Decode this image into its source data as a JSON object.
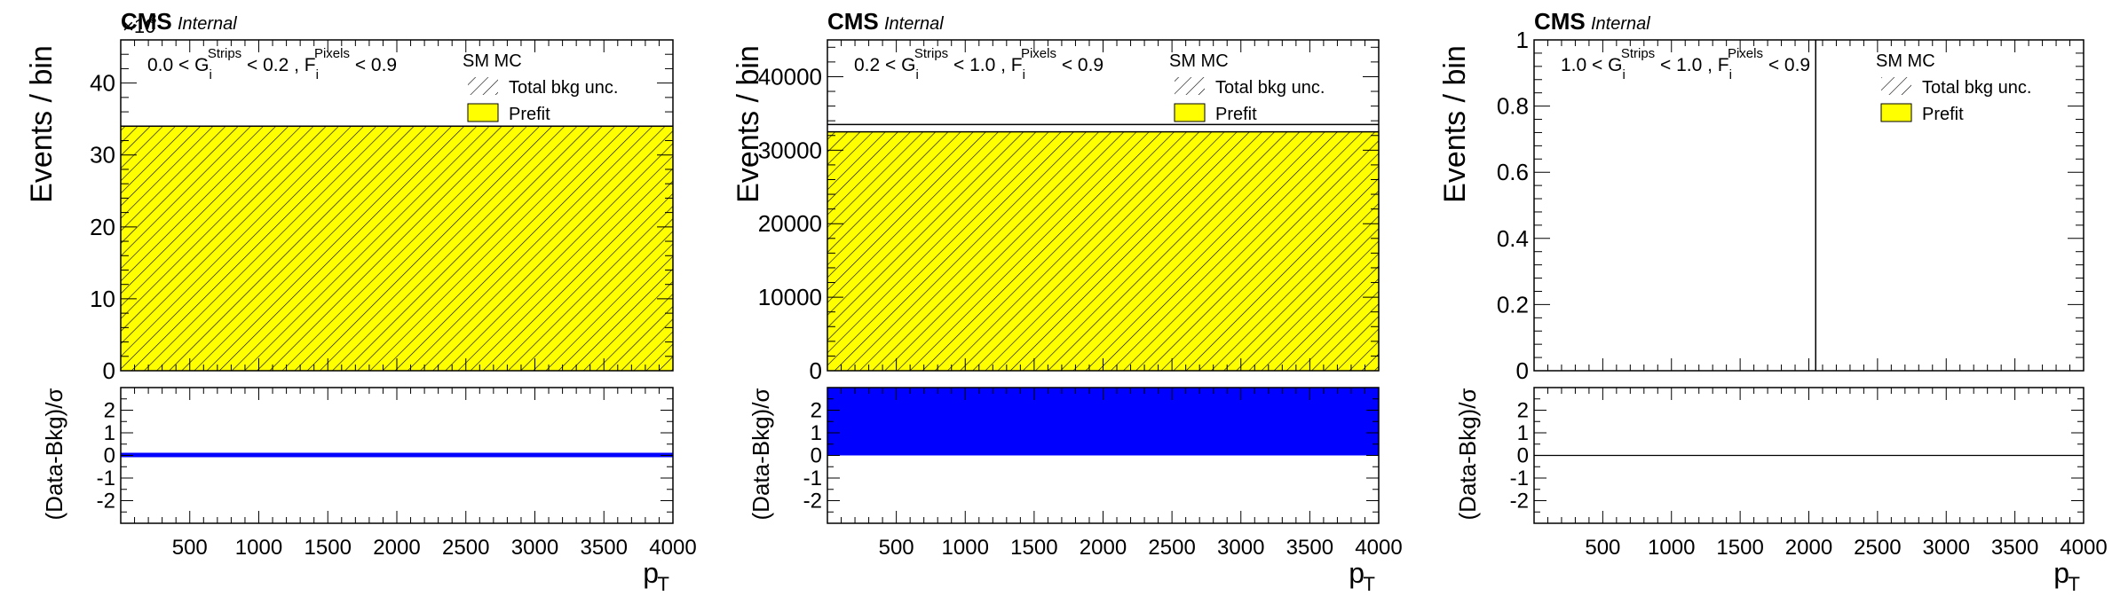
{
  "x_axis_label": "p",
  "x_axis_label_sub": "T",
  "y_axis_label_main": "Events / bin",
  "y_axis_label_ratio": "(Data-Bkg)/σ",
  "cms_label": "CMS",
  "internal_label": "Internal",
  "legend": {
    "mc": "SM MC",
    "unc": "Total bkg unc.",
    "prefit": "Prefit"
  },
  "colors": {
    "prefit_fill": "#ffff00",
    "hatch": "#000000",
    "ratio_fill": "#0000ff",
    "line": "#000000"
  },
  "chart_data": [
    {
      "type": "bar",
      "region": {
        "g_lo": "0.0",
        "g_hi": "0.2",
        "f_cut": "0.9"
      },
      "multiplier": "×10",
      "multiplier_exp": "3",
      "x": [
        0,
        4000
      ],
      "xlim": [
        0,
        4000
      ],
      "xticks": [
        500,
        1000,
        1500,
        2000,
        2500,
        3000,
        3500,
        4000
      ],
      "main": {
        "ylim": [
          0,
          46
        ],
        "yticks": [
          0,
          10,
          20,
          30,
          40
        ],
        "prefit_value": 34,
        "unc_value": 34
      },
      "ratio": {
        "ylim": [
          -3,
          3
        ],
        "yticks": [
          -2,
          -1,
          0,
          1,
          2
        ],
        "fill_value": 0.0,
        "style": "thin-band"
      }
    },
    {
      "type": "bar",
      "region": {
        "g_lo": "0.2",
        "g_hi": "1.0",
        "f_cut": "0.9"
      },
      "x": [
        0,
        4000
      ],
      "xlim": [
        0,
        4000
      ],
      "xticks": [
        500,
        1000,
        1500,
        2000,
        2500,
        3000,
        3500,
        4000
      ],
      "main": {
        "ylim": [
          0,
          45000
        ],
        "yticks": [
          0,
          10000,
          20000,
          30000,
          40000
        ],
        "prefit_value": 32500,
        "unc_value": 33500
      },
      "ratio": {
        "ylim": [
          -3,
          3
        ],
        "yticks": [
          -2,
          -1,
          0,
          1,
          2
        ],
        "fill_value": 3.0,
        "style": "block"
      }
    },
    {
      "type": "bar",
      "region": {
        "g_lo": "1.0",
        "g_hi": "1.0",
        "f_cut": "0.9"
      },
      "x": [
        0,
        4000
      ],
      "xlim": [
        0,
        4000
      ],
      "xticks": [
        500,
        1000,
        1500,
        2000,
        2500,
        3000,
        3500,
        4000
      ],
      "main": {
        "ylim": [
          0,
          1
        ],
        "yticks": [
          0,
          0.2,
          0.4,
          0.6,
          0.8,
          1
        ],
        "prefit_value": 0,
        "unc_value": 0,
        "vertical_line_x": 2050
      },
      "ratio": {
        "ylim": [
          -3,
          3
        ],
        "yticks": [
          -2,
          -1,
          0,
          1,
          2
        ],
        "fill_value": 0.0,
        "style": "line"
      }
    }
  ]
}
